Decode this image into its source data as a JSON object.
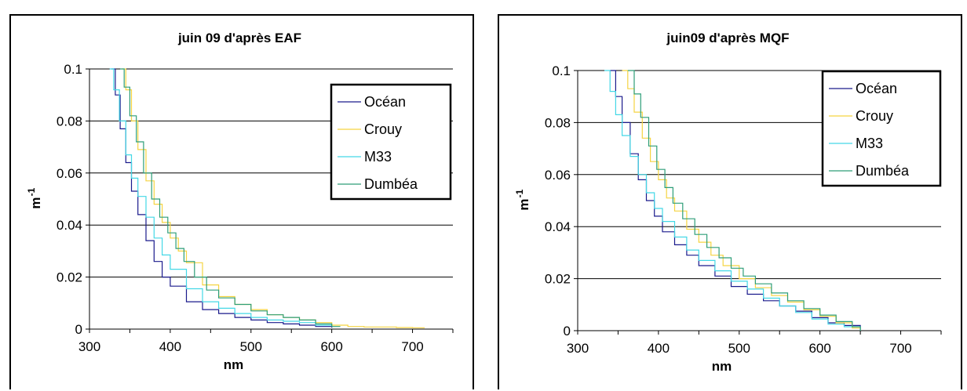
{
  "chart_data": [
    {
      "type": "line",
      "title": "juin 09 d'après EAF",
      "xlabel": "nm",
      "ylabel": "m",
      "ylabel_exp": "-1",
      "xlim": [
        300,
        750
      ],
      "ylim": [
        0,
        0.1
      ],
      "xticks": [
        "300",
        "400",
        "500",
        "600",
        "700"
      ],
      "yticks": [
        "0",
        "0.02",
        "0.04",
        "0.06",
        "0.08",
        "0.1"
      ],
      "grid": "horizontal",
      "legend": "top-right",
      "series": [
        {
          "name": "Océan",
          "color": "#1a1a8c",
          "x": [
            327,
            332,
            338,
            345,
            352,
            360,
            370,
            380,
            390,
            400,
            420,
            440,
            460,
            480,
            500,
            520,
            540,
            560,
            580,
            600
          ],
          "y": [
            0.1,
            0.09,
            0.077,
            0.064,
            0.053,
            0.044,
            0.034,
            0.026,
            0.02,
            0.0165,
            0.0105,
            0.0075,
            0.006,
            0.0045,
            0.0035,
            0.0025,
            0.002,
            0.0015,
            0.001,
            0.0005
          ]
        },
        {
          "name": "Crouy",
          "color": "#f5d442",
          "x": [
            340,
            345,
            352,
            360,
            370,
            380,
            390,
            400,
            410,
            420,
            440,
            460,
            480,
            500,
            520,
            540,
            560,
            580,
            600,
            620,
            640,
            660,
            680,
            700,
            715
          ],
          "y": [
            0.1,
            0.092,
            0.08,
            0.069,
            0.057,
            0.048,
            0.041,
            0.035,
            0.03,
            0.0255,
            0.017,
            0.0125,
            0.0095,
            0.0075,
            0.0055,
            0.0045,
            0.0035,
            0.0025,
            0.0015,
            0.001,
            0.0008,
            0.0008,
            0.0006,
            0.0005,
            0.0005
          ]
        },
        {
          "name": "M33",
          "color": "#44d8e6",
          "x": [
            325,
            330,
            337,
            345,
            352,
            360,
            370,
            380,
            390,
            400,
            420,
            440,
            460,
            480,
            500,
            520,
            540,
            560,
            580,
            600
          ],
          "y": [
            0.1,
            0.092,
            0.08,
            0.067,
            0.058,
            0.051,
            0.043,
            0.035,
            0.0285,
            0.023,
            0.0155,
            0.0105,
            0.008,
            0.006,
            0.0045,
            0.0035,
            0.003,
            0.0025,
            0.0015,
            0.001
          ]
        },
        {
          "name": "Dumbéa",
          "color": "#2e9e78",
          "x": [
            338,
            343,
            350,
            358,
            367,
            377,
            387,
            397,
            407,
            417,
            430,
            445,
            460,
            480,
            500,
            520,
            540,
            560,
            580,
            600,
            610
          ],
          "y": [
            0.1,
            0.093,
            0.082,
            0.072,
            0.06,
            0.05,
            0.043,
            0.037,
            0.031,
            0.026,
            0.02,
            0.015,
            0.012,
            0.0095,
            0.007,
            0.0055,
            0.0045,
            0.0035,
            0.002,
            0.001,
            0.0008
          ]
        }
      ]
    },
    {
      "type": "line",
      "title": "juin09 d'après MQF",
      "xlabel": "nm",
      "ylabel": "m",
      "ylabel_exp": "-1",
      "xlim": [
        300,
        750
      ],
      "ylim": [
        0,
        0.1
      ],
      "xticks": [
        "300",
        "400",
        "500",
        "600",
        "700"
      ],
      "yticks": [
        "0",
        "0.02",
        "0.04",
        "0.06",
        "0.08",
        "0.1"
      ],
      "grid": "horizontal",
      "legend": "top-right",
      "series": [
        {
          "name": "Océan",
          "color": "#1a1a8c",
          "x": [
            340,
            347,
            355,
            365,
            375,
            385,
            395,
            405,
            420,
            435,
            450,
            470,
            490,
            510,
            530,
            550,
            570,
            590,
            610,
            630,
            650
          ],
          "y": [
            0.1,
            0.09,
            0.08,
            0.068,
            0.058,
            0.05,
            0.044,
            0.038,
            0.033,
            0.029,
            0.025,
            0.021,
            0.017,
            0.014,
            0.0115,
            0.0095,
            0.0075,
            0.005,
            0.003,
            0.002,
            0.0
          ]
        },
        {
          "name": "Crouy",
          "color": "#f5d442",
          "x": [
            355,
            362,
            370,
            380,
            390,
            400,
            410,
            420,
            435,
            450,
            465,
            480,
            500,
            520,
            540,
            560,
            580,
            600,
            620,
            640,
            650
          ],
          "y": [
            0.1,
            0.093,
            0.084,
            0.074,
            0.065,
            0.058,
            0.051,
            0.046,
            0.039,
            0.034,
            0.029,
            0.025,
            0.02,
            0.0165,
            0.0135,
            0.011,
            0.008,
            0.0055,
            0.003,
            0.001,
            0.0
          ]
        },
        {
          "name": "M33",
          "color": "#44d8e6",
          "x": [
            333,
            340,
            347,
            355,
            365,
            375,
            385,
            395,
            405,
            420,
            435,
            450,
            470,
            490,
            510,
            530,
            550,
            570,
            590,
            610,
            630,
            650
          ],
          "y": [
            0.1,
            0.092,
            0.083,
            0.075,
            0.067,
            0.06,
            0.053,
            0.047,
            0.042,
            0.036,
            0.031,
            0.027,
            0.023,
            0.019,
            0.016,
            0.0125,
            0.0095,
            0.007,
            0.0045,
            0.0025,
            0.0015,
            0.0
          ]
        },
        {
          "name": "Dumbéa",
          "color": "#2e9e78",
          "x": [
            362,
            370,
            378,
            388,
            398,
            408,
            418,
            430,
            445,
            460,
            475,
            490,
            505,
            520,
            540,
            560,
            580,
            600,
            620,
            640,
            650
          ],
          "y": [
            0.1,
            0.091,
            0.082,
            0.071,
            0.062,
            0.055,
            0.049,
            0.043,
            0.037,
            0.032,
            0.028,
            0.024,
            0.021,
            0.018,
            0.0145,
            0.0115,
            0.0085,
            0.006,
            0.0035,
            0.0015,
            0.0
          ]
        }
      ]
    }
  ]
}
